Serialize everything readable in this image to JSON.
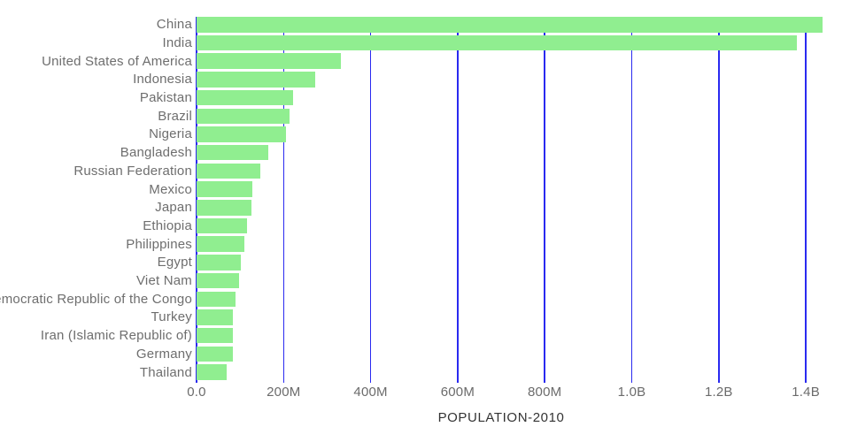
{
  "chart_data": {
    "type": "bar",
    "orientation": "horizontal",
    "title": "",
    "xlabel": "POPULATION-2010",
    "ylabel": "",
    "grid": true,
    "legend": false,
    "categories": [
      "China",
      "India",
      "United States of America",
      "Indonesia",
      "Pakistan",
      "Brazil",
      "Nigeria",
      "Bangladesh",
      "Russian Federation",
      "Mexico",
      "Japan",
      "Ethiopia",
      "Philippines",
      "Egypt",
      "Viet Nam",
      "Democratic Republic of the Congo",
      "Turkey",
      "Iran (Islamic Republic of)",
      "Germany",
      "Thailand"
    ],
    "values_millions": [
      1439,
      1380,
      331,
      273,
      221,
      213,
      206,
      165,
      146,
      129,
      126,
      115,
      110,
      102,
      97,
      90,
      84.3,
      84,
      83.8,
      70
    ],
    "x_ticks": [
      {
        "value_millions": 0,
        "label": "0.0"
      },
      {
        "value_millions": 200,
        "label": "200M"
      },
      {
        "value_millions": 400,
        "label": "400M"
      },
      {
        "value_millions": 600,
        "label": "600M"
      },
      {
        "value_millions": 800,
        "label": "800M"
      },
      {
        "value_millions": 1000,
        "label": "1.0B"
      },
      {
        "value_millions": 1200,
        "label": "1.2B"
      },
      {
        "value_millions": 1400,
        "label": "1.4B"
      }
    ],
    "xlim_millions": [
      0,
      1500
    ],
    "colors": {
      "bar": "#90EE90",
      "gridline": "#2A2AF0",
      "category_label": "#6E6E6E",
      "tick_label": "#6B6B6B",
      "axis_title": "#333333",
      "background": "#FFFFFF"
    }
  }
}
